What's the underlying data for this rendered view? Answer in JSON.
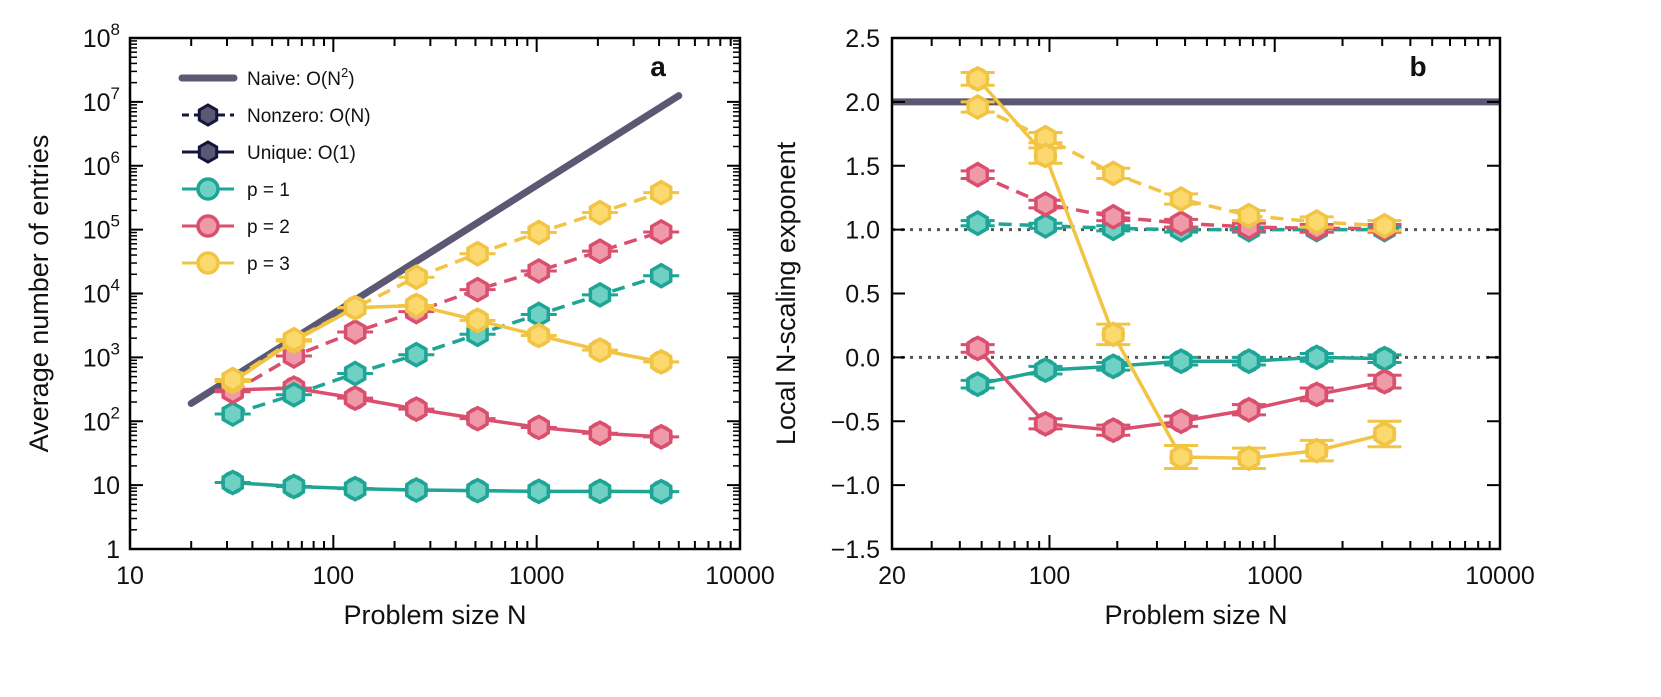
{
  "chart_data": [
    {
      "panel": "a",
      "type": "line",
      "xscale": "log",
      "yscale": "log",
      "xlim": [
        10,
        10000
      ],
      "ylim": [
        1,
        100000000
      ],
      "xlabel": "Problem size N",
      "ylabel": "Average number of entries",
      "panel_label": "a",
      "xticks": [
        {
          "value": 10,
          "label": "10"
        },
        {
          "value": 100,
          "label": "100"
        },
        {
          "value": 1000,
          "label": "1000"
        },
        {
          "value": 10000,
          "label": "10000"
        }
      ],
      "yticks": [
        {
          "value": 1,
          "base": "1",
          "exp": ""
        },
        {
          "value": 10,
          "base": "10",
          "exp": ""
        },
        {
          "value": 100,
          "base": "10",
          "exp": "2"
        },
        {
          "value": 1000,
          "base": "10",
          "exp": "3"
        },
        {
          "value": 10000,
          "base": "10",
          "exp": "4"
        },
        {
          "value": 100000,
          "base": "10",
          "exp": "5"
        },
        {
          "value": 1000000,
          "base": "10",
          "exp": "6"
        },
        {
          "value": 10000000,
          "base": "10",
          "exp": "7"
        },
        {
          "value": 100000000,
          "base": "10",
          "exp": "8"
        }
      ],
      "legend": {
        "position": "top-left",
        "entries": [
          {
            "kind": "line",
            "color": "#5a5872",
            "label": "Naive: O(N",
            "sup": "2",
            "tail": ")"
          },
          {
            "kind": "hex",
            "color": "#5a5872",
            "edge": "#16143a",
            "label": "Nonzero: O(N)",
            "dash": true
          },
          {
            "kind": "hex",
            "color": "#5a5872",
            "edge": "#16143a",
            "label": "Unique: O(1)",
            "dash": false
          },
          {
            "kind": "circle",
            "color": "#6fd0c4",
            "edge": "#1fa596",
            "label": "p = 1"
          },
          {
            "kind": "circle",
            "color": "#f09aa9",
            "edge": "#d9506e",
            "label": "p = 2"
          },
          {
            "kind": "circle",
            "color": "#fbd96e",
            "edge": "#f2c443",
            "label": "p = 3"
          }
        ]
      },
      "series": [
        {
          "name": "Naive: O(N^2)",
          "style": "naive",
          "color": "#5a5872",
          "x": [
            20,
            5000
          ],
          "y": [
            190,
            12500000
          ]
        },
        {
          "name": "p = 1 nonzero",
          "color": "#1fa596",
          "fill": "#6fd0c4",
          "dash": true,
          "x": [
            32,
            64,
            128,
            256,
            512,
            1024,
            2048,
            4096
          ],
          "y": [
            130,
            260,
            560,
            1100,
            2300,
            4700,
            9500,
            19000
          ]
        },
        {
          "name": "p = 2 nonzero",
          "color": "#d9506e",
          "fill": "#f09aa9",
          "dash": true,
          "x": [
            32,
            64,
            128,
            256,
            512,
            1024,
            2048,
            4096
          ],
          "y": [
            290,
            1050,
            2500,
            5200,
            11500,
            22500,
            46000,
            92000
          ]
        },
        {
          "name": "p = 3 nonzero",
          "color": "#f2c443",
          "fill": "#fbd96e",
          "dash": true,
          "x": [
            32,
            64,
            128,
            256,
            512,
            1024,
            2048,
            4096
          ],
          "y": [
            450,
            1900,
            6000,
            18000,
            42000,
            90000,
            185000,
            380000
          ]
        },
        {
          "name": "p = 1 unique",
          "color": "#1fa596",
          "fill": "#6fd0c4",
          "dash": false,
          "x": [
            32,
            64,
            128,
            256,
            512,
            1024,
            2048,
            4096
          ],
          "y": [
            11,
            9.5,
            8.8,
            8.4,
            8.2,
            8.0,
            8.0,
            7.9
          ]
        },
        {
          "name": "p = 2 unique",
          "color": "#d9506e",
          "fill": "#f09aa9",
          "dash": false,
          "x": [
            32,
            64,
            128,
            256,
            512,
            1024,
            2048,
            4096
          ],
          "y": [
            310,
            330,
            230,
            155,
            110,
            80,
            65,
            57
          ]
        },
        {
          "name": "p = 3 unique",
          "color": "#f2c443",
          "fill": "#fbd96e",
          "dash": false,
          "x": [
            32,
            64,
            128,
            256,
            512,
            1024,
            2048,
            4096
          ],
          "y": [
            420,
            1800,
            6000,
            6500,
            3800,
            2200,
            1300,
            850
          ]
        }
      ]
    },
    {
      "panel": "b",
      "type": "line",
      "xscale": "log",
      "yscale": "linear",
      "xlim": [
        20,
        10000
      ],
      "ylim": [
        -1.5,
        2.5
      ],
      "xlabel": "Problem size N",
      "ylabel": "Local N-scaling exponent",
      "panel_label": "b",
      "xticks": [
        {
          "value": 20,
          "label": "20"
        },
        {
          "value": 100,
          "label": "100"
        },
        {
          "value": 1000,
          "label": "1000"
        },
        {
          "value": 10000,
          "label": "10000"
        }
      ],
      "yticks": [
        {
          "value": 2.5,
          "label": "2.5"
        },
        {
          "value": 2.0,
          "label": "2.0"
        },
        {
          "value": 1.5,
          "label": "1.5"
        },
        {
          "value": 1.0,
          "label": "1.0"
        },
        {
          "value": 0.5,
          "label": "0.5"
        },
        {
          "value": 0.0,
          "label": "0.0"
        },
        {
          "value": -0.5,
          "label": "−0.5"
        },
        {
          "value": -1.0,
          "label": "−1.0"
        },
        {
          "value": -1.5,
          "label": "−1.5"
        }
      ],
      "reference_lines": [
        {
          "y": 2.0,
          "style": "solid",
          "color": "#5a5872"
        },
        {
          "y": 1.0,
          "style": "dotted",
          "color": "#555555"
        },
        {
          "y": 0.0,
          "style": "dotted",
          "color": "#555555"
        }
      ],
      "series": [
        {
          "name": "p = 1 nonzero",
          "color": "#1fa596",
          "fill": "#6fd0c4",
          "dash": true,
          "x": [
            48,
            96,
            192,
            384,
            768,
            1536,
            3072
          ],
          "y": [
            1.05,
            1.03,
            1.01,
            1.0,
            1.0,
            1.0,
            1.0
          ],
          "err": [
            0.02,
            0.02,
            0.02,
            0.02,
            0.02,
            0.02,
            0.02
          ]
        },
        {
          "name": "p = 2 nonzero",
          "color": "#d9506e",
          "fill": "#f09aa9",
          "dash": true,
          "x": [
            48,
            96,
            192,
            384,
            768,
            1536,
            3072
          ],
          "y": [
            1.43,
            1.2,
            1.1,
            1.05,
            1.02,
            1.01,
            1.01
          ],
          "err": [
            0.03,
            0.03,
            0.03,
            0.03,
            0.03,
            0.03,
            0.03
          ]
        },
        {
          "name": "p = 3 nonzero",
          "color": "#f2c443",
          "fill": "#fbd96e",
          "dash": true,
          "x": [
            48,
            96,
            192,
            384,
            768,
            1536,
            3072
          ],
          "y": [
            1.96,
            1.72,
            1.44,
            1.24,
            1.11,
            1.06,
            1.03
          ],
          "err": [
            0.04,
            0.04,
            0.04,
            0.04,
            0.04,
            0.04,
            0.04
          ]
        },
        {
          "name": "p = 1 unique",
          "color": "#1fa596",
          "fill": "#6fd0c4",
          "dash": false,
          "x": [
            48,
            96,
            192,
            384,
            768,
            1536,
            3072
          ],
          "y": [
            -0.21,
            -0.1,
            -0.07,
            -0.03,
            -0.03,
            0.0,
            -0.01
          ],
          "err": [
            0.03,
            0.03,
            0.03,
            0.03,
            0.03,
            0.03,
            0.03
          ]
        },
        {
          "name": "p = 2 unique",
          "color": "#d9506e",
          "fill": "#f09aa9",
          "dash": false,
          "x": [
            48,
            96,
            192,
            384,
            768,
            1536,
            3072
          ],
          "y": [
            0.07,
            -0.52,
            -0.57,
            -0.5,
            -0.41,
            -0.29,
            -0.19
          ],
          "err": [
            0.03,
            0.04,
            0.04,
            0.04,
            0.04,
            0.05,
            0.05
          ]
        },
        {
          "name": "p = 3 unique",
          "color": "#f2c443",
          "fill": "#fbd96e",
          "dash": false,
          "x": [
            48,
            96,
            192,
            384,
            768,
            1536,
            3072
          ],
          "y": [
            2.18,
            1.58,
            0.18,
            -0.78,
            -0.79,
            -0.73,
            -0.6
          ],
          "err": [
            0.05,
            0.06,
            0.08,
            0.09,
            0.08,
            0.08,
            0.1
          ]
        }
      ]
    }
  ]
}
